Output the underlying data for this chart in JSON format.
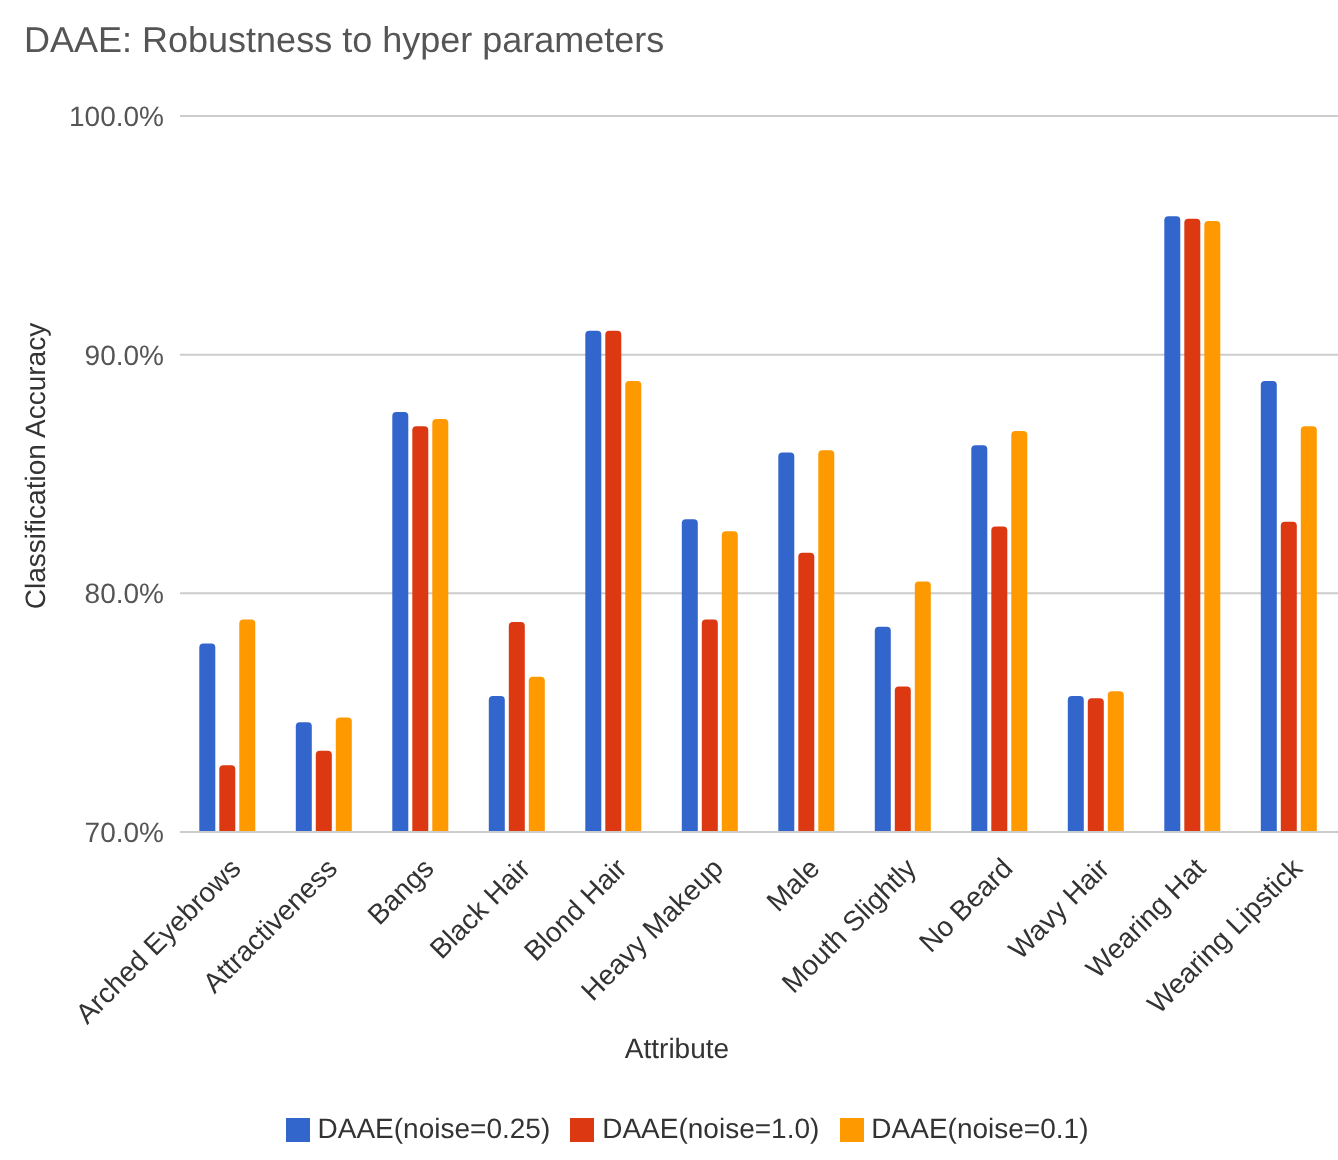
{
  "chart_data": {
    "type": "bar",
    "title": "DAAE: Robustness to hyper parameters",
    "xlabel": "Attribute",
    "ylabel": "Classification Accuracy",
    "categories": [
      "Arched Eyebrows",
      "Attractiveness",
      "Bangs",
      "Black Hair",
      "Blond Hair",
      "Heavy Makeup",
      "Male",
      "Mouth Slightly",
      "No Beard",
      "Wavy Hair",
      "Wearing Hat",
      "Wearing Lipstick"
    ],
    "series": [
      {
        "name": "DAAE(noise=0.25)",
        "color": "#3366cc",
        "values": [
          77.9,
          74.6,
          87.6,
          75.7,
          91.0,
          83.1,
          85.9,
          78.6,
          86.2,
          75.7,
          95.8,
          88.9
        ]
      },
      {
        "name": "DAAE(noise=1.0)",
        "color": "#dc3912",
        "values": [
          72.8,
          73.4,
          87.0,
          78.8,
          91.0,
          78.9,
          81.7,
          76.1,
          82.8,
          75.6,
          95.7,
          83.0
        ]
      },
      {
        "name": "DAAE(noise=0.1)",
        "color": "#ff9900",
        "values": [
          78.9,
          74.8,
          87.3,
          76.5,
          88.9,
          82.6,
          86.0,
          80.5,
          86.8,
          75.9,
          95.6,
          87.0
        ]
      }
    ],
    "ylim": [
      70,
      100
    ],
    "yticks": [
      {
        "value": 70,
        "label": "70.0%"
      },
      {
        "value": 80,
        "label": "80.0%"
      },
      {
        "value": 90,
        "label": "90.0%"
      },
      {
        "value": 100,
        "label": "100.0%"
      }
    ],
    "grid": "y",
    "legend": "bottom"
  }
}
